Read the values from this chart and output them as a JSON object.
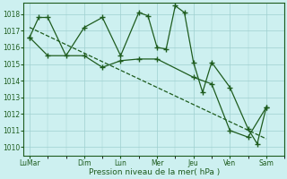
{
  "xlabel": "Pression niveau de la mer( hPa )",
  "background_color": "#cdf0f0",
  "grid_color": "#9ecfcf",
  "line_color": "#1e5c1e",
  "ylim": [
    1009.5,
    1018.7
  ],
  "yticks": [
    1010,
    1011,
    1012,
    1013,
    1014,
    1015,
    1016,
    1017,
    1018
  ],
  "xtick_labels": [
    "LuMar",
    "Dim",
    "Lun",
    "Mer",
    "Jeu",
    "Ven",
    "Sam"
  ],
  "xtick_positions": [
    0,
    36,
    60,
    84,
    108,
    132,
    156
  ],
  "x_max": 168,
  "series1_x": [
    0,
    6,
    12,
    24,
    36,
    48,
    60,
    72,
    78,
    84,
    90,
    96,
    102,
    108,
    114,
    120,
    132,
    144,
    150,
    156
  ],
  "series1_y": [
    1016.6,
    1017.8,
    1017.8,
    1015.5,
    1017.2,
    1017.8,
    1015.5,
    1018.1,
    1017.9,
    1016.0,
    1015.9,
    1018.5,
    1018.1,
    1015.1,
    1013.3,
    1015.1,
    1013.6,
    1011.1,
    1010.2,
    1012.4
  ],
  "series2_x": [
    0,
    12,
    36,
    48,
    60,
    72,
    84,
    108,
    120,
    132,
    144,
    156
  ],
  "series2_y": [
    1016.6,
    1015.5,
    1015.5,
    1014.8,
    1015.2,
    1015.3,
    1015.3,
    1014.2,
    1013.8,
    1011.0,
    1010.6,
    1012.4
  ],
  "trend_x": [
    0,
    156
  ],
  "trend_y": [
    1017.2,
    1010.5
  ]
}
